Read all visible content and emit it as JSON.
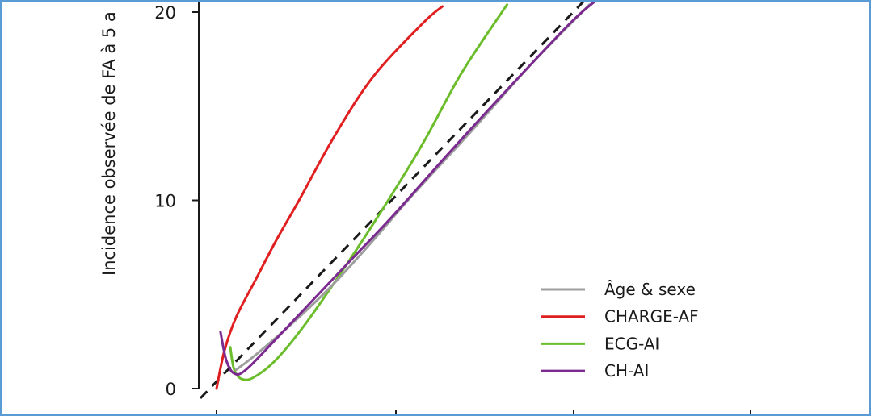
{
  "chart_data": {
    "type": "line",
    "ylabel": "Incidence observée de FA à 5 a",
    "xlabel": "",
    "ylim": [
      0,
      20
    ],
    "y_ticks": [
      {
        "value": 0,
        "label": "0"
      },
      {
        "value": 10,
        "label": "10"
      },
      {
        "value": 20,
        "label": "20"
      }
    ],
    "reference_line": {
      "style": "dashed",
      "color": "#1a1a1a"
    },
    "legend": {
      "position": "bottom-right",
      "entries": [
        "Âge & sexe",
        "CHARGE-AF",
        "ECG-AI",
        "CH-AI"
      ]
    },
    "series": [
      {
        "name": "Âge & sexe",
        "color": "#9e9e9e",
        "points": [
          [
            1.0,
            1.0
          ],
          [
            2.0,
            1.8
          ],
          [
            4.0,
            3.6
          ],
          [
            6.0,
            5.6
          ],
          [
            8.0,
            7.9
          ],
          [
            10.0,
            10.3
          ],
          [
            13.0,
            13.7
          ],
          [
            16.0,
            17.2
          ],
          [
            19.0,
            20.4
          ]
        ]
      },
      {
        "name": "CHARGE-AF",
        "color": "#e02020",
        "points": [
          [
            0.0,
            0.0
          ],
          [
            0.4,
            2.0
          ],
          [
            1.0,
            3.8
          ],
          [
            2.0,
            5.8
          ],
          [
            3.0,
            7.8
          ],
          [
            4.2,
            10.0
          ],
          [
            6.0,
            13.4
          ],
          [
            8.0,
            16.6
          ],
          [
            10.5,
            19.4
          ],
          [
            11.5,
            20.3
          ]
        ]
      },
      {
        "name": "ECG-AI",
        "color": "#6cbd2c",
        "points": [
          [
            0.7,
            2.2
          ],
          [
            0.9,
            1.0
          ],
          [
            1.3,
            0.5
          ],
          [
            1.9,
            0.6
          ],
          [
            3.0,
            1.5
          ],
          [
            4.5,
            3.4
          ],
          [
            6.5,
            6.4
          ],
          [
            8.5,
            9.6
          ],
          [
            10.5,
            13.0
          ],
          [
            12.5,
            16.8
          ],
          [
            14.8,
            20.4
          ]
        ]
      },
      {
        "name": "CH-AI",
        "color": "#7b2a90",
        "points": [
          [
            0.2,
            3.0
          ],
          [
            0.5,
            1.5
          ],
          [
            0.9,
            0.8
          ],
          [
            1.5,
            1.0
          ],
          [
            3.0,
            2.6
          ],
          [
            5.0,
            4.8
          ],
          [
            7.0,
            7.0
          ],
          [
            9.0,
            9.2
          ],
          [
            12.0,
            12.7
          ],
          [
            15.0,
            16.1
          ],
          [
            18.0,
            19.4
          ],
          [
            19.3,
            20.6
          ]
        ]
      }
    ]
  }
}
